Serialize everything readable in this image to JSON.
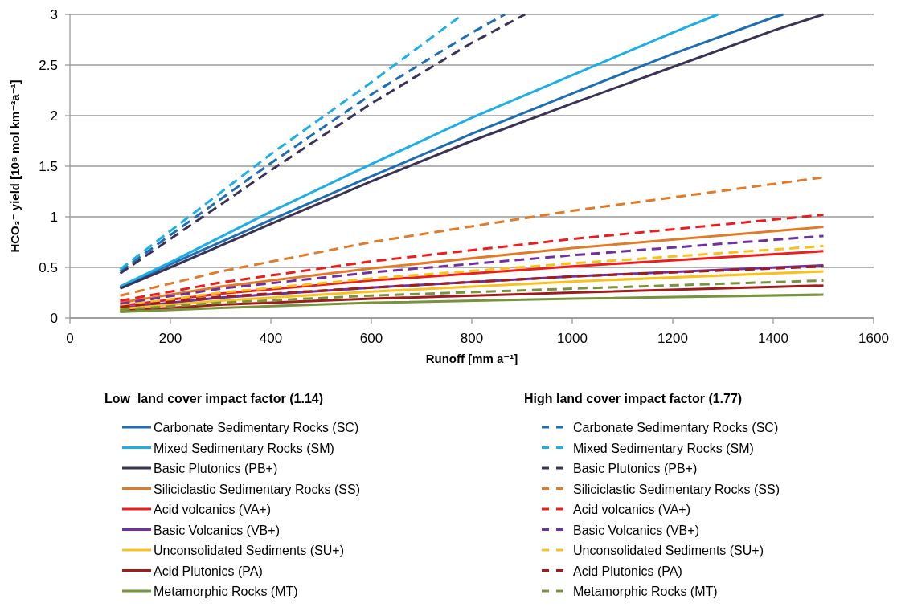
{
  "chart_data": {
    "type": "line",
    "xlabel": "Runoff [mm a⁻¹]",
    "ylabel": "HCO₃⁻ yield [10⁶ mol km⁻²a⁻¹]",
    "xlim": [
      0,
      1600
    ],
    "xticks": [
      0,
      200,
      400,
      600,
      800,
      1000,
      1200,
      1400,
      1600
    ],
    "ylim": [
      0,
      3
    ],
    "yticks": [
      0,
      0.5,
      1,
      1.5,
      2,
      2.5,
      3
    ],
    "grid": "y",
    "legend": "bottom",
    "legend_title": "Low  land cover impact factor (1.14)",
    "annotations": [
      "High land cover impact factor (1.77)"
    ],
    "series": [
      {
        "name": "Carbonate Sedimentary Rocks (SC)",
        "color": "#1f6db3",
        "line_style": "solid",
        "x": [
          100,
          200,
          400,
          600,
          800,
          1000,
          1200,
          1400,
          1420
        ],
        "values": [
          0.3,
          0.53,
          0.97,
          1.4,
          1.82,
          2.22,
          2.61,
          2.97,
          3
        ]
      },
      {
        "name": "Mixed Sedimentary Rocks (SM)",
        "color": "#1eaee6",
        "line_style": "solid",
        "x": [
          100,
          200,
          400,
          600,
          800,
          1000,
          1200,
          1290
        ],
        "values": [
          0.31,
          0.55,
          1.05,
          1.52,
          1.98,
          2.4,
          2.82,
          3
        ]
      },
      {
        "name": "Basic Plutonics (PB+)",
        "color": "#3b3356",
        "line_style": "solid",
        "x": [
          100,
          200,
          400,
          600,
          800,
          1000,
          1200,
          1400,
          1500
        ],
        "values": [
          0.29,
          0.5,
          0.93,
          1.35,
          1.75,
          2.12,
          2.48,
          2.84,
          3
        ]
      },
      {
        "name": "Siliciclastic Sedimentary Rocks (SS)",
        "color": "#e07b28",
        "line_style": "solid",
        "x": [
          100,
          300,
          600,
          1000,
          1500
        ],
        "values": [
          0.15,
          0.31,
          0.49,
          0.69,
          0.9
        ]
      },
      {
        "name": "Acid volcanics (VA+)",
        "color": "#ee1c1c",
        "line_style": "solid",
        "x": [
          100,
          300,
          600,
          1000,
          1500
        ],
        "values": [
          0.12,
          0.24,
          0.37,
          0.51,
          0.66
        ]
      },
      {
        "name": "Basic Volcanics (VB+)",
        "color": "#7030a0",
        "line_style": "solid",
        "x": [
          100,
          300,
          600,
          1000,
          1500
        ],
        "values": [
          0.1,
          0.2,
          0.3,
          0.41,
          0.52
        ]
      },
      {
        "name": "Unconsolidated Sediments (SU+)",
        "color": "#f9c11b",
        "line_style": "solid",
        "x": [
          100,
          300,
          600,
          1000,
          1500
        ],
        "values": [
          0.09,
          0.17,
          0.26,
          0.36,
          0.46
        ]
      },
      {
        "name": "Acid Plutonics (PA)",
        "color": "#a01c1c",
        "line_style": "solid",
        "x": [
          100,
          300,
          600,
          1000,
          1500
        ],
        "values": [
          0.07,
          0.13,
          0.19,
          0.25,
          0.32
        ]
      },
      {
        "name": "Metamorphic Rocks (MT)",
        "color": "#77933c",
        "line_style": "solid",
        "x": [
          100,
          300,
          600,
          1000,
          1500
        ],
        "values": [
          0.06,
          0.1,
          0.15,
          0.19,
          0.23
        ]
      },
      {
        "name": "Carbonate Sedimentary Rocks (SC)",
        "color": "#1f6db3",
        "line_style": "dashed",
        "x": [
          100,
          200,
          400,
          600,
          800,
          866
        ],
        "values": [
          0.46,
          0.82,
          1.53,
          2.21,
          2.82,
          3
        ]
      },
      {
        "name": "Mixed Sedimentary Rocks (SM)",
        "color": "#1eaee6",
        "line_style": "dashed",
        "x": [
          100,
          200,
          400,
          600,
          782
        ],
        "values": [
          0.48,
          0.86,
          1.62,
          2.33,
          3
        ]
      },
      {
        "name": "Basic Plutonics (PB+)",
        "color": "#3b3356",
        "line_style": "dashed",
        "x": [
          100,
          200,
          400,
          600,
          800,
          906
        ],
        "values": [
          0.44,
          0.78,
          1.46,
          2.12,
          2.72,
          3
        ]
      },
      {
        "name": "Siliciclastic Sedimentary Rocks (SS)",
        "color": "#e07b28",
        "line_style": "dashed",
        "x": [
          100,
          300,
          600,
          1000,
          1500
        ],
        "values": [
          0.22,
          0.46,
          0.75,
          1.06,
          1.39
        ]
      },
      {
        "name": "Acid volcanics (VA+)",
        "color": "#ee1c1c",
        "line_style": "dashed",
        "x": [
          100,
          300,
          600,
          1000,
          1500
        ],
        "values": [
          0.17,
          0.35,
          0.56,
          0.78,
          1.02
        ]
      },
      {
        "name": "Basic Volcanics (VB+)",
        "color": "#7030a0",
        "line_style": "dashed",
        "x": [
          100,
          300,
          600,
          1000,
          1500
        ],
        "values": [
          0.14,
          0.29,
          0.45,
          0.62,
          0.81
        ]
      },
      {
        "name": "Unconsolidated Sediments (SU+)",
        "color": "#f9c11b",
        "line_style": "dashed",
        "x": [
          100,
          300,
          600,
          1000,
          1500
        ],
        "values": [
          0.12,
          0.25,
          0.39,
          0.54,
          0.71
        ]
      },
      {
        "name": "Acid Plutonics (PA)",
        "color": "#a01c1c",
        "line_style": "dashed",
        "x": [
          100,
          300,
          600,
          1000,
          1500
        ],
        "values": [
          0.11,
          0.21,
          0.3,
          0.41,
          0.51
        ]
      },
      {
        "name": "Metamorphic Rocks (MT)",
        "color": "#77933c",
        "line_style": "dashed",
        "x": [
          100,
          300,
          600,
          1000,
          1500
        ],
        "values": [
          0.08,
          0.15,
          0.22,
          0.29,
          0.37
        ]
      }
    ]
  }
}
